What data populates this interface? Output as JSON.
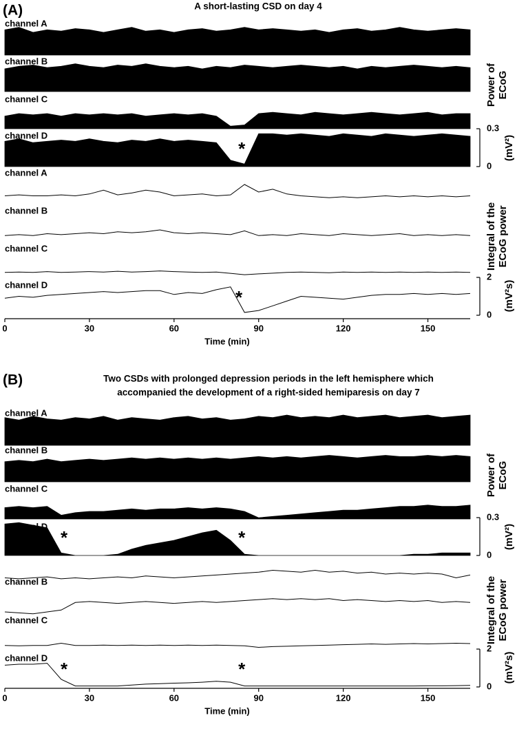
{
  "chart_data": [
    {
      "type": "area",
      "label": "(A)",
      "title": "A short-lasting CSD on day 4",
      "x": [
        0,
        5,
        10,
        15,
        20,
        25,
        30,
        35,
        40,
        45,
        50,
        55,
        60,
        65,
        70,
        75,
        80,
        85,
        90,
        95,
        100,
        105,
        110,
        115,
        120,
        125,
        130,
        135,
        140,
        145,
        150,
        155,
        160,
        165
      ],
      "xlim": [
        0,
        165
      ],
      "xticks": [
        0,
        30,
        60,
        90,
        120,
        150
      ],
      "xlabel": "Time (min)",
      "power_ylabel": [
        "Power of",
        "ECoG"
      ],
      "power_unit": "(mV²)",
      "power_ylim": [
        0,
        0.3
      ],
      "power_yticks": [
        0,
        0.3
      ],
      "integral_ylabel": [
        "Integral of the",
        "ECoG power"
      ],
      "integral_unit": "(mV²s)",
      "integral_ylim": [
        0,
        2
      ],
      "integral_yticks": [
        0,
        2
      ],
      "color": "#000000",
      "power_series": [
        {
          "name": "channel A",
          "values": [
            0.2,
            0.22,
            0.18,
            0.2,
            0.19,
            0.21,
            0.2,
            0.18,
            0.2,
            0.22,
            0.19,
            0.2,
            0.18,
            0.2,
            0.21,
            0.19,
            0.2,
            0.22,
            0.2,
            0.21,
            0.2,
            0.19,
            0.2,
            0.18,
            0.2,
            0.21,
            0.19,
            0.2,
            0.22,
            0.2,
            0.19,
            0.2,
            0.21,
            0.2
          ]
        },
        {
          "name": "channel B",
          "values": [
            0.18,
            0.2,
            0.21,
            0.19,
            0.2,
            0.22,
            0.2,
            0.19,
            0.21,
            0.2,
            0.22,
            0.2,
            0.19,
            0.2,
            0.18,
            0.2,
            0.19,
            0.21,
            0.2,
            0.19,
            0.2,
            0.21,
            0.2,
            0.19,
            0.2,
            0.18,
            0.2,
            0.19,
            0.2,
            0.21,
            0.2,
            0.19,
            0.2,
            0.19
          ]
        },
        {
          "name": "channel C",
          "values": [
            0.1,
            0.12,
            0.11,
            0.12,
            0.1,
            0.12,
            0.11,
            0.12,
            0.11,
            0.12,
            0.1,
            0.11,
            0.12,
            0.11,
            0.12,
            0.1,
            0.02,
            0.03,
            0.12,
            0.13,
            0.12,
            0.11,
            0.13,
            0.12,
            0.11,
            0.12,
            0.13,
            0.12,
            0.11,
            0.12,
            0.13,
            0.11,
            0.12,
            0.12
          ]
        },
        {
          "name": "channel D",
          "values": [
            0.2,
            0.22,
            0.19,
            0.2,
            0.21,
            0.2,
            0.22,
            0.2,
            0.19,
            0.21,
            0.2,
            0.22,
            0.2,
            0.21,
            0.2,
            0.19,
            0.05,
            0.02,
            0.26,
            0.26,
            0.25,
            0.26,
            0.25,
            0.24,
            0.26,
            0.25,
            0.24,
            0.26,
            0.25,
            0.24,
            0.25,
            0.26,
            0.25,
            0.24
          ]
        }
      ],
      "integral_series": [
        {
          "name": "channel A",
          "values": [
            1.0,
            1.05,
            1.0,
            1.0,
            1.05,
            1.0,
            1.1,
            1.3,
            1.05,
            1.15,
            1.3,
            1.2,
            1.0,
            1.05,
            1.1,
            1.0,
            1.05,
            1.6,
            1.2,
            1.35,
            1.1,
            1.0,
            0.95,
            0.9,
            0.95,
            0.9,
            0.95,
            1.0,
            0.95,
            1.0,
            0.95,
            1.0,
            0.95,
            1.0
          ]
        },
        {
          "name": "channel B",
          "values": [
            0.9,
            0.95,
            0.9,
            1.0,
            0.95,
            1.0,
            1.05,
            1.0,
            1.1,
            1.05,
            1.1,
            1.2,
            1.05,
            1.0,
            1.05,
            1.0,
            0.95,
            1.15,
            0.9,
            0.95,
            0.9,
            1.0,
            0.95,
            0.9,
            1.0,
            0.95,
            0.9,
            0.95,
            1.0,
            0.9,
            0.95,
            0.9,
            0.95,
            0.9
          ]
        },
        {
          "name": "channel C",
          "values": [
            0.7,
            0.72,
            0.7,
            0.74,
            0.7,
            0.72,
            0.74,
            0.72,
            0.76,
            0.72,
            0.74,
            0.78,
            0.74,
            0.72,
            0.7,
            0.72,
            0.65,
            0.58,
            0.62,
            0.66,
            0.7,
            0.72,
            0.7,
            0.68,
            0.72,
            0.7,
            0.72,
            0.7,
            0.72,
            0.7,
            0.72,
            0.7,
            0.72,
            0.7
          ]
        },
        {
          "name": "channel D",
          "values": [
            0.9,
            1.0,
            0.95,
            1.05,
            1.1,
            1.15,
            1.2,
            1.25,
            1.2,
            1.25,
            1.3,
            1.3,
            1.1,
            1.2,
            1.15,
            1.35,
            1.5,
            0.15,
            0.25,
            0.5,
            0.75,
            1.0,
            0.95,
            0.9,
            0.85,
            0.95,
            1.05,
            1.1,
            1.1,
            1.15,
            1.1,
            1.15,
            1.1,
            1.15
          ]
        }
      ],
      "power_annotations": [
        {
          "text": "*",
          "x": 84
        }
      ],
      "integral_annotations": [
        {
          "text": "*",
          "x": 83
        }
      ]
    },
    {
      "type": "area",
      "label": "(B)",
      "title": [
        "Two CSDs with prolonged depression periods in the left hemisphere which",
        "accompanied the development of a right-sided hemiparesis on day 7"
      ],
      "x": [
        0,
        5,
        10,
        15,
        20,
        25,
        30,
        35,
        40,
        45,
        50,
        55,
        60,
        65,
        70,
        75,
        80,
        85,
        90,
        95,
        100,
        105,
        110,
        115,
        120,
        125,
        130,
        135,
        140,
        145,
        150,
        155,
        160,
        165
      ],
      "xlim": [
        0,
        165
      ],
      "xticks": [
        0,
        30,
        60,
        90,
        120,
        150
      ],
      "xlabel": "Time (min)",
      "power_ylabel": [
        "Power of",
        "ECoG"
      ],
      "power_unit": "(mV²)",
      "power_ylim": [
        0,
        0.3
      ],
      "power_yticks": [
        0,
        0.3
      ],
      "integral_ylabel": [
        "Integral of the",
        "ECoG power"
      ],
      "integral_unit": "(mV²s)",
      "integral_ylim": [
        0,
        2
      ],
      "integral_yticks": [
        0,
        2
      ],
      "color": "#000000",
      "power_series": [
        {
          "name": "channel A",
          "values": [
            0.22,
            0.2,
            0.23,
            0.21,
            0.2,
            0.22,
            0.21,
            0.23,
            0.2,
            0.22,
            0.21,
            0.2,
            0.22,
            0.23,
            0.21,
            0.22,
            0.2,
            0.21,
            0.23,
            0.22,
            0.24,
            0.22,
            0.23,
            0.22,
            0.24,
            0.22,
            0.23,
            0.24,
            0.22,
            0.23,
            0.24,
            0.22,
            0.23,
            0.24
          ]
        },
        {
          "name": "channel B",
          "values": [
            0.16,
            0.17,
            0.16,
            0.18,
            0.16,
            0.17,
            0.18,
            0.17,
            0.18,
            0.19,
            0.18,
            0.19,
            0.18,
            0.19,
            0.18,
            0.19,
            0.18,
            0.19,
            0.2,
            0.19,
            0.2,
            0.19,
            0.2,
            0.21,
            0.2,
            0.19,
            0.2,
            0.21,
            0.2,
            0.2,
            0.21,
            0.2,
            0.21,
            0.2
          ]
        },
        {
          "name": "channel C",
          "values": [
            0.09,
            0.1,
            0.09,
            0.1,
            0.03,
            0.05,
            0.06,
            0.06,
            0.07,
            0.08,
            0.07,
            0.08,
            0.08,
            0.09,
            0.08,
            0.09,
            0.08,
            0.06,
            0.01,
            0.02,
            0.03,
            0.04,
            0.05,
            0.06,
            0.07,
            0.07,
            0.08,
            0.09,
            0.1,
            0.1,
            0.11,
            0.1,
            0.1,
            0.11
          ]
        },
        {
          "name": "channel D",
          "values": [
            0.25,
            0.26,
            0.24,
            0.22,
            0.02,
            0.0,
            0.0,
            0.0,
            0.01,
            0.05,
            0.08,
            0.1,
            0.12,
            0.15,
            0.18,
            0.2,
            0.12,
            0.01,
            0.0,
            0.0,
            0.0,
            0.0,
            0.0,
            0.0,
            0.0,
            0.0,
            0.0,
            0.0,
            0.0,
            0.01,
            0.01,
            0.02,
            0.02,
            0.02
          ]
        }
      ],
      "integral_series": [
        {
          "name": "channel A",
          "values": [
            1.0,
            0.95,
            1.0,
            1.05,
            0.95,
            1.0,
            0.95,
            1.0,
            1.05,
            1.0,
            1.1,
            1.05,
            1.0,
            1.05,
            1.1,
            1.15,
            1.2,
            1.25,
            1.3,
            1.4,
            1.35,
            1.3,
            1.4,
            1.3,
            1.35,
            1.25,
            1.3,
            1.2,
            1.25,
            1.2,
            1.25,
            1.2,
            1.0,
            1.15
          ]
        },
        {
          "name": "channel B",
          "values": [
            0.8,
            0.75,
            0.7,
            0.8,
            0.9,
            1.3,
            1.35,
            1.3,
            1.25,
            1.3,
            1.35,
            1.3,
            1.25,
            1.3,
            1.35,
            1.3,
            1.35,
            1.4,
            1.45,
            1.5,
            1.45,
            1.5,
            1.45,
            1.5,
            1.4,
            1.45,
            1.4,
            1.35,
            1.4,
            1.35,
            1.4,
            1.3,
            1.35,
            1.3
          ]
        },
        {
          "name": "channel C",
          "values": [
            0.3,
            0.28,
            0.3,
            0.3,
            0.42,
            0.3,
            0.3,
            0.32,
            0.3,
            0.32,
            0.3,
            0.32,
            0.3,
            0.32,
            0.3,
            0.32,
            0.3,
            0.28,
            0.2,
            0.24,
            0.26,
            0.28,
            0.3,
            0.32,
            0.34,
            0.36,
            0.38,
            0.36,
            0.38,
            0.4,
            0.38,
            0.4,
            0.42,
            0.4
          ]
        },
        {
          "name": "channel D",
          "values": [
            1.15,
            1.2,
            1.2,
            1.25,
            0.4,
            0.05,
            0.05,
            0.05,
            0.05,
            0.1,
            0.15,
            0.17,
            0.2,
            0.22,
            0.25,
            0.3,
            0.25,
            0.05,
            0.05,
            0.05,
            0.05,
            0.05,
            0.05,
            0.05,
            0.05,
            0.05,
            0.05,
            0.05,
            0.05,
            0.05,
            0.06,
            0.06,
            0.07,
            0.08
          ]
        }
      ],
      "power_annotations": [
        {
          "text": "*",
          "x": 21
        },
        {
          "text": "*",
          "x": 84
        }
      ],
      "integral_annotations": [
        {
          "text": "*",
          "x": 21
        },
        {
          "text": "*",
          "x": 84
        }
      ]
    }
  ]
}
